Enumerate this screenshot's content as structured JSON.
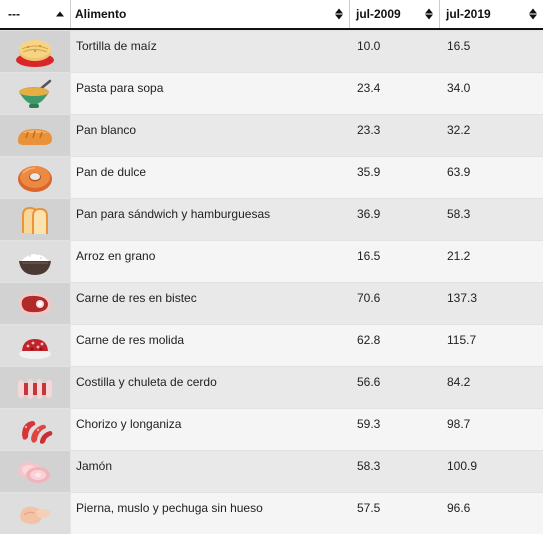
{
  "header": {
    "col0": "---",
    "col1": "Alimento",
    "col2": "jul-2009",
    "col3": "jul-2019"
  },
  "rows": [
    {
      "icon": "tortilla-icon",
      "name": "Tortilla de maíz",
      "v2009": "10.0",
      "v2019": "16.5"
    },
    {
      "icon": "soup-bowl-icon",
      "name": "Pasta para sopa",
      "v2009": "23.4",
      "v2019": "34.0"
    },
    {
      "icon": "bread-loaf-icon",
      "name": "Pan blanco",
      "v2009": "23.3",
      "v2019": "32.2"
    },
    {
      "icon": "donut-icon",
      "name": "Pan de dulce",
      "v2009": "35.9",
      "v2019": "63.9"
    },
    {
      "icon": "sliced-bread-icon",
      "name": "Pan para sándwich y hamburguesas",
      "v2009": "36.9",
      "v2019": "58.3"
    },
    {
      "icon": "rice-bowl-icon",
      "name": "Arroz en grano",
      "v2009": "16.5",
      "v2019": "21.2"
    },
    {
      "icon": "steak-icon",
      "name": "Carne de res en bistec",
      "v2009": "70.6",
      "v2019": "137.3"
    },
    {
      "icon": "ground-beef-icon",
      "name": "Carne de res molida",
      "v2009": "62.8",
      "v2019": "115.7"
    },
    {
      "icon": "pork-ribs-icon",
      "name": "Costilla y chuleta de cerdo",
      "v2009": "56.6",
      "v2019": "84.2"
    },
    {
      "icon": "sausage-icon",
      "name": "Chorizo y longaniza",
      "v2009": "59.3",
      "v2019": "98.7"
    },
    {
      "icon": "ham-icon",
      "name": "Jamón",
      "v2009": "58.3",
      "v2019": "100.9"
    },
    {
      "icon": "chicken-icon",
      "name": "Pierna, muslo y pechuga sin hueso",
      "v2009": "57.5",
      "v2019": "96.6"
    }
  ]
}
